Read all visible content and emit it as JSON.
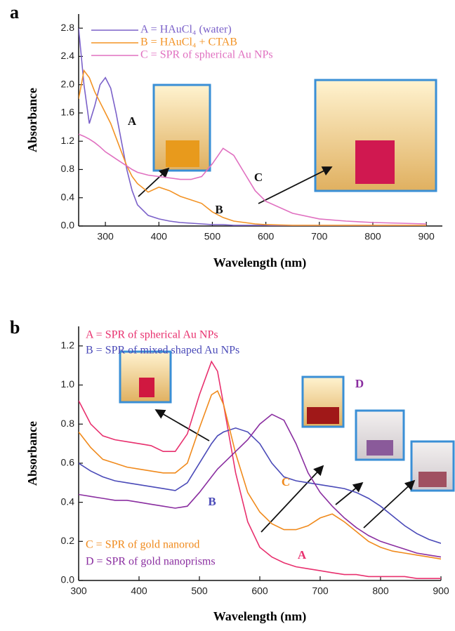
{
  "chart_data": [
    {
      "type": "line",
      "panel": "a",
      "xlabel": "Wavelength (nm)",
      "ylabel": "Absorbance",
      "x": [
        250,
        260,
        270,
        280,
        290,
        300,
        310,
        320,
        330,
        340,
        350,
        360,
        380,
        400,
        420,
        440,
        460,
        480,
        500,
        520,
        540,
        560,
        580,
        600,
        650,
        700,
        750,
        800,
        850,
        900
      ],
      "xlim": [
        250,
        930
      ],
      "ylim": [
        0,
        3.0
      ],
      "xticks": [
        300,
        400,
        500,
        600,
        700,
        800,
        900
      ],
      "yticks": [
        {
          "value": 0,
          "label": "0.0"
        },
        0.4,
        0.8,
        1.2,
        1.6,
        {
          "value": 2,
          "label": "2.0"
        },
        2.4,
        2.8
      ],
      "series": [
        {
          "name": "A = HAuCl₄ (water)",
          "color": "#7b61c9",
          "values": [
            2.8,
            2.0,
            1.45,
            1.7,
            2.0,
            2.1,
            1.95,
            1.6,
            1.2,
            0.8,
            0.5,
            0.3,
            0.15,
            0.1,
            0.07,
            0.05,
            0.04,
            0.03,
            0.02,
            0.02,
            0.01,
            0.01,
            0.01,
            0.01,
            0,
            0,
            0,
            0,
            0,
            0
          ]
        },
        {
          "name": "B = HAuCl₄ + CTAB",
          "color": "#f39325",
          "values": [
            1.8,
            2.2,
            2.1,
            1.9,
            1.75,
            1.6,
            1.45,
            1.25,
            1.05,
            0.85,
            0.7,
            0.6,
            0.48,
            0.55,
            0.5,
            0.42,
            0.37,
            0.32,
            0.2,
            0.12,
            0.07,
            0.05,
            0.03,
            0.02,
            0.01,
            0.01,
            0.01,
            0.01,
            0.01,
            0.01
          ]
        },
        {
          "name": "C = SPR of spherical Au NPs",
          "color": "#e070c0",
          "values": [
            1.3,
            1.27,
            1.23,
            1.18,
            1.12,
            1.05,
            1.0,
            0.95,
            0.9,
            0.85,
            0.8,
            0.76,
            0.72,
            0.7,
            0.68,
            0.66,
            0.66,
            0.7,
            0.88,
            1.1,
            1.0,
            0.75,
            0.5,
            0.35,
            0.18,
            0.1,
            0.07,
            0.05,
            0.04,
            0.03
          ]
        }
      ],
      "annotations": [
        {
          "text": "A",
          "color": "#111"
        },
        {
          "text": "B",
          "color": "#111"
        },
        {
          "text": "C",
          "color": "#111"
        }
      ]
    },
    {
      "type": "line",
      "panel": "b",
      "xlabel": "Wavelength (nm)",
      "ylabel": "Absorbance",
      "x": [
        300,
        320,
        340,
        360,
        380,
        400,
        420,
        440,
        460,
        480,
        500,
        520,
        530,
        540,
        560,
        580,
        600,
        620,
        640,
        660,
        680,
        700,
        720,
        740,
        760,
        780,
        800,
        820,
        840,
        860,
        880,
        900
      ],
      "xlim": [
        300,
        900
      ],
      "ylim": [
        0,
        1.3
      ],
      "xticks": [
        300,
        400,
        500,
        600,
        700,
        800,
        900
      ],
      "yticks": [
        {
          "value": 0,
          "label": "0.0"
        },
        0.2,
        0.4,
        0.6,
        0.8,
        {
          "value": 1,
          "label": "1.0"
        },
        1.2
      ],
      "series": [
        {
          "name": "A = SPR of spherical Au NPs",
          "color": "#e8306e",
          "values": [
            0.92,
            0.8,
            0.74,
            0.72,
            0.71,
            0.7,
            0.69,
            0.66,
            0.66,
            0.75,
            0.95,
            1.12,
            1.07,
            0.9,
            0.55,
            0.3,
            0.17,
            0.12,
            0.09,
            0.07,
            0.06,
            0.05,
            0.04,
            0.03,
            0.03,
            0.02,
            0.02,
            0.02,
            0.02,
            0.01,
            0.01,
            0.01
          ]
        },
        {
          "name": "B = SPR of mixed shaped Au NPs",
          "color": "#4a4ab8",
          "values": [
            0.6,
            0.56,
            0.53,
            0.51,
            0.5,
            0.49,
            0.48,
            0.47,
            0.46,
            0.5,
            0.6,
            0.7,
            0.74,
            0.76,
            0.78,
            0.76,
            0.7,
            0.6,
            0.53,
            0.51,
            0.5,
            0.49,
            0.48,
            0.47,
            0.45,
            0.42,
            0.38,
            0.33,
            0.28,
            0.24,
            0.21,
            0.19
          ]
        },
        {
          "name": "C = SPR of gold nanorod",
          "color": "#f08a1c",
          "values": [
            0.76,
            0.68,
            0.62,
            0.6,
            0.58,
            0.57,
            0.56,
            0.55,
            0.55,
            0.6,
            0.78,
            0.95,
            0.97,
            0.9,
            0.65,
            0.45,
            0.35,
            0.29,
            0.26,
            0.26,
            0.28,
            0.32,
            0.34,
            0.3,
            0.25,
            0.2,
            0.17,
            0.15,
            0.14,
            0.13,
            0.12,
            0.11
          ]
        },
        {
          "name": "D = SPR of gold nanoprisms",
          "color": "#8a2ea0",
          "values": [
            0.44,
            0.43,
            0.42,
            0.41,
            0.41,
            0.4,
            0.39,
            0.38,
            0.37,
            0.38,
            0.45,
            0.53,
            0.57,
            0.6,
            0.66,
            0.72,
            0.8,
            0.85,
            0.82,
            0.7,
            0.55,
            0.45,
            0.38,
            0.32,
            0.27,
            0.23,
            0.2,
            0.18,
            0.16,
            0.14,
            0.13,
            0.12
          ]
        }
      ],
      "annotations": [
        {
          "text": "A",
          "color": "#e8306e"
        },
        {
          "text": "B",
          "color": "#4a4ab8"
        },
        {
          "text": "C",
          "color": "#f08a1c"
        },
        {
          "text": "D",
          "color": "#8a2ea0"
        }
      ]
    }
  ]
}
